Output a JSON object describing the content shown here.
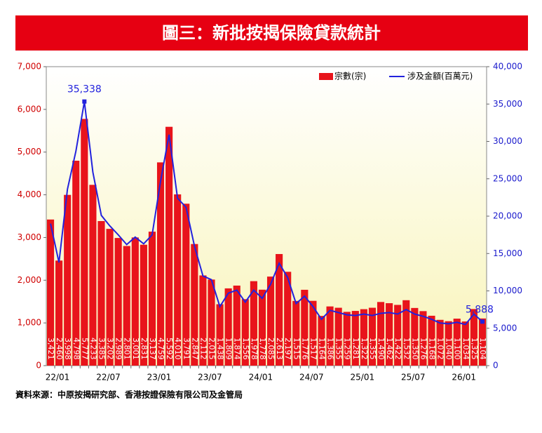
{
  "chart_data": {
    "type": "bar_line",
    "title": "圖三：新批按揭保險貸款統計",
    "source": "資料來源：中原按揭研究部、香港按證保險有限公司及金管局",
    "categories": [
      "22/01",
      null,
      null,
      null,
      null,
      null,
      "22/07",
      null,
      null,
      null,
      null,
      null,
      "23/01",
      null,
      null,
      null,
      null,
      null,
      "23/07",
      null,
      null,
      null,
      null,
      null,
      "24/01",
      null,
      null,
      null,
      null,
      null,
      "24/07",
      null,
      null,
      null,
      null,
      null,
      "25/01",
      null,
      null,
      null,
      null,
      null,
      "25/07",
      null,
      null,
      null,
      null,
      null,
      "26/01",
      null,
      null,
      null
    ],
    "series": [
      {
        "name": "宗數(宗)",
        "color": "#e8141b",
        "values": [
          3421,
          2460,
          3998,
          4798,
          5777,
          4233,
          3385,
          3202,
          2989,
          2801,
          3001,
          2831,
          3137,
          4759,
          5592,
          4010,
          3791,
          2847,
          2112,
          2015,
          1438,
          1809,
          1874,
          1556,
          1978,
          1778,
          2085,
          2613,
          2197,
          1515,
          1776,
          1517,
          1164,
          1386,
          1355,
          1259,
          1281,
          1322,
          1355,
          1490,
          1462,
          1422,
          1532,
          1350,
          1276,
          1168,
          1072,
          1040,
          1100,
          1034,
          1325,
          1104
        ],
        "value_labels": [
          "3,421",
          "2,460",
          "3,998",
          "4,798",
          "5,777",
          "4,233",
          "3,385",
          "3,202",
          "2,989",
          "2,801",
          "3,001",
          "2,831",
          "3,137",
          "4,759",
          "5,592",
          "4,010",
          "3,791",
          "2,847",
          "2,112",
          "2,015",
          "1,438",
          "1,809",
          "1,874",
          "1,556",
          "1,978",
          "1,778",
          "2,085",
          "2,613",
          "2,197",
          "1,515",
          "1,776",
          "1,517",
          "1,164",
          "1,386",
          "1,355",
          "1,259",
          "1,281",
          "1,322",
          "1,355",
          "1,490",
          "1,462",
          "1,422",
          "1,532",
          "1,350",
          "1,276",
          "1,168",
          "1,072",
          "1,040",
          "1,100",
          "1,034",
          "1,325",
          "1,104"
        ]
      },
      {
        "name": "涉及金額(百萬元)",
        "color": "#2222dd",
        "axis": "y2",
        "values": [
          19000,
          13800,
          23600,
          28700,
          35338,
          25900,
          20100,
          18700,
          17500,
          16200,
          17200,
          16300,
          17500,
          24700,
          30900,
          22400,
          21200,
          16000,
          12000,
          11500,
          7900,
          9700,
          10100,
          8500,
          10100,
          9000,
          10900,
          13700,
          11800,
          8300,
          9300,
          7900,
          6200,
          7400,
          7100,
          6800,
          6700,
          6900,
          6700,
          7000,
          7100,
          6900,
          7500,
          6900,
          6600,
          6200,
          5700,
          5600,
          5800,
          5500,
          6900,
          5888
        ],
        "value_labels": [
          null,
          null,
          null,
          null,
          "35,338",
          null,
          null,
          null,
          null,
          null,
          null,
          null,
          null,
          null,
          null,
          null,
          null,
          null,
          null,
          null,
          null,
          null,
          null,
          null,
          null,
          null,
          null,
          null,
          null,
          null,
          null,
          null,
          null,
          null,
          null,
          null,
          null,
          null,
          null,
          null,
          null,
          null,
          null,
          null,
          null,
          null,
          null,
          null,
          null,
          null,
          null,
          "5,888"
        ]
      }
    ],
    "ylim": [
      0,
      7000
    ],
    "yticks": [
      0,
      {
        "value": 1000,
        "label": "1,000"
      },
      {
        "value": 2000,
        "label": "2,000"
      },
      {
        "value": 3000,
        "label": "3,000"
      },
      {
        "value": 4000,
        "label": "4,000"
      },
      {
        "value": 5000,
        "label": "5,000"
      },
      {
        "value": 6000,
        "label": "6,000"
      },
      {
        "value": 7000,
        "label": "7,000"
      }
    ],
    "y2lim": [
      0,
      40000
    ],
    "y2ticks": [
      0,
      {
        "value": 5000,
        "label": "5,000"
      },
      {
        "value": 10000,
        "label": "10,000"
      },
      {
        "value": 15000,
        "label": "15,000"
      },
      {
        "value": 20000,
        "label": "20,000"
      },
      {
        "value": 25000,
        "label": "25,000"
      },
      {
        "value": 30000,
        "label": "30,000"
      },
      {
        "value": 35000,
        "label": "35,000"
      },
      {
        "value": 40000,
        "label": "40,000"
      }
    ],
    "legend": "top-right"
  }
}
